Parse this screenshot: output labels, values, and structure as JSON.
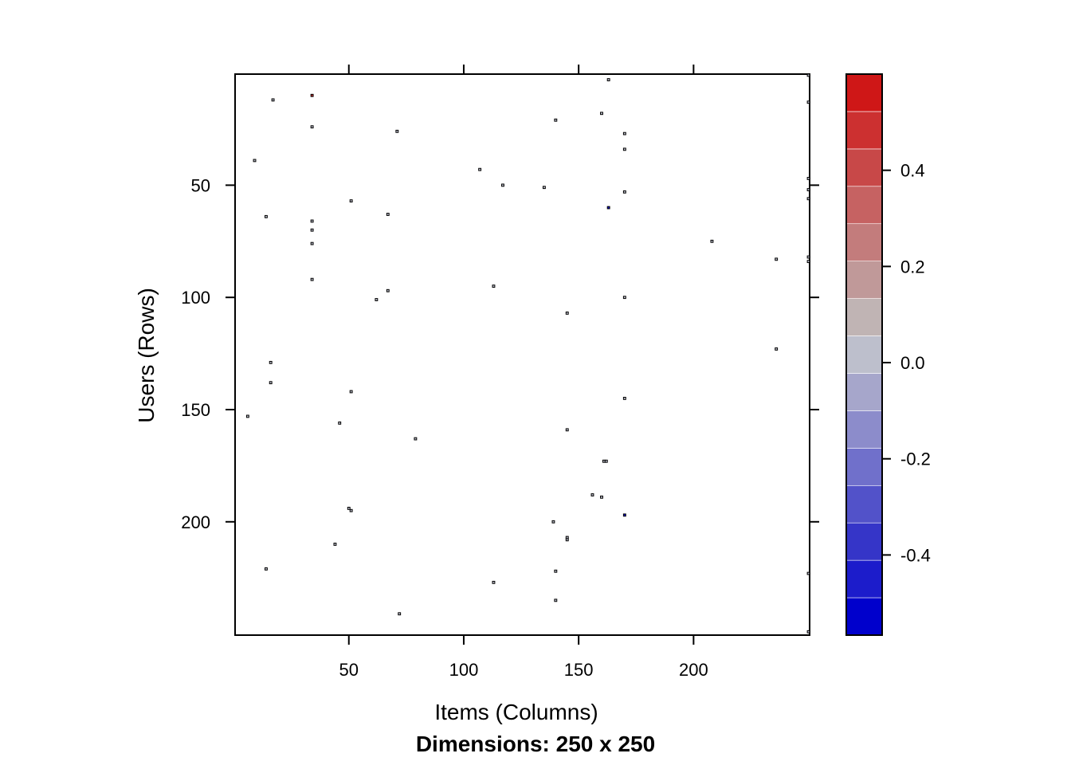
{
  "chart_data": {
    "type": "heatmap",
    "xlabel": "Items (Columns)",
    "ylabel": "Users (Rows)",
    "subtitle": "Dimensions: 250 x 250",
    "xlim": [
      0.5,
      250.5
    ],
    "ylim": [
      250.5,
      0.5
    ],
    "y_reversed": true,
    "x_ticks": [
      50,
      100,
      150,
      200
    ],
    "x_tick_labels": [
      "50",
      "100",
      "150",
      "200"
    ],
    "y_ticks": [
      50,
      100,
      150,
      200
    ],
    "y_tick_labels": [
      "50",
      "100",
      "150",
      "200"
    ],
    "colorbar": {
      "breaks": [
        -0.5667,
        -0.4889,
        -0.4111,
        -0.3333,
        -0.2556,
        -0.1778,
        -0.1,
        -0.0222,
        0.0556,
        0.1333,
        0.2111,
        0.2889,
        0.3667,
        0.4444,
        0.5222,
        0.6
      ],
      "colors": [
        "#0000CC",
        "#1C1CCB",
        "#3535C8",
        "#5252C9",
        "#7070CB",
        "#8C8CCB",
        "#A6A6CB",
        "#BDBFCC",
        "#C0B4B4",
        "#C09999",
        "#C37C7C",
        "#C66262",
        "#C84848",
        "#CC3030",
        "#CF1717",
        "#CC0000"
      ],
      "ticks": [
        -0.4,
        -0.2,
        0.0,
        0.2,
        0.4
      ],
      "tick_labels": [
        "-0.4",
        "-0.2",
        "0.0",
        "0.2",
        "0.4"
      ]
    },
    "cells": [
      {
        "col": 163,
        "row": 3,
        "value": 0.0
      },
      {
        "col": 250,
        "row": 1,
        "value": 0.0
      },
      {
        "col": 250,
        "row": 13,
        "value": 0.0
      },
      {
        "col": 34,
        "row": 10,
        "value": 0.5
      },
      {
        "col": 17,
        "row": 12,
        "value": 0.0
      },
      {
        "col": 160,
        "row": 18,
        "value": 0.0
      },
      {
        "col": 140,
        "row": 21,
        "value": 0.0
      },
      {
        "col": 34,
        "row": 24,
        "value": 0.0
      },
      {
        "col": 71,
        "row": 26,
        "value": 0.0
      },
      {
        "col": 170,
        "row": 27,
        "value": 0.0
      },
      {
        "col": 170,
        "row": 34,
        "value": 0.0
      },
      {
        "col": 9,
        "row": 39,
        "value": 0.0
      },
      {
        "col": 107,
        "row": 43,
        "value": 0.0
      },
      {
        "col": 250,
        "row": 47,
        "value": 0.0
      },
      {
        "col": 117,
        "row": 50,
        "value": 0.0
      },
      {
        "col": 135,
        "row": 51,
        "value": 0.0
      },
      {
        "col": 250,
        "row": 52,
        "value": 0.0
      },
      {
        "col": 170,
        "row": 53,
        "value": 0.0
      },
      {
        "col": 250,
        "row": 56,
        "value": 0.0
      },
      {
        "col": 51,
        "row": 57,
        "value": 0.0
      },
      {
        "col": 163,
        "row": 60,
        "value": -0.5
      },
      {
        "col": 67,
        "row": 63,
        "value": 0.0
      },
      {
        "col": 14,
        "row": 64,
        "value": 0.0
      },
      {
        "col": 34,
        "row": 66,
        "value": 0.0
      },
      {
        "col": 34,
        "row": 70,
        "value": 0.0
      },
      {
        "col": 208,
        "row": 75,
        "value": 0.0
      },
      {
        "col": 34,
        "row": 76,
        "value": 0.0
      },
      {
        "col": 250,
        "row": 82,
        "value": 0.0
      },
      {
        "col": 236,
        "row": 83,
        "value": 0.0
      },
      {
        "col": 250,
        "row": 84,
        "value": 0.0
      },
      {
        "col": 34,
        "row": 92,
        "value": 0.0
      },
      {
        "col": 113,
        "row": 95,
        "value": 0.0
      },
      {
        "col": 67,
        "row": 97,
        "value": 0.0
      },
      {
        "col": 170,
        "row": 100,
        "value": 0.0
      },
      {
        "col": 62,
        "row": 101,
        "value": 0.0
      },
      {
        "col": 145,
        "row": 107,
        "value": 0.0
      },
      {
        "col": 236,
        "row": 123,
        "value": 0.0
      },
      {
        "col": 16,
        "row": 129,
        "value": 0.0
      },
      {
        "col": 16,
        "row": 138,
        "value": 0.0
      },
      {
        "col": 51,
        "row": 142,
        "value": 0.0
      },
      {
        "col": 170,
        "row": 145,
        "value": 0.0
      },
      {
        "col": 6,
        "row": 153,
        "value": 0.0
      },
      {
        "col": 46,
        "row": 156,
        "value": 0.0
      },
      {
        "col": 145,
        "row": 159,
        "value": 0.0
      },
      {
        "col": 79,
        "row": 163,
        "value": 0.0
      },
      {
        "col": 161,
        "row": 173,
        "value": 0.0
      },
      {
        "col": 162,
        "row": 173,
        "value": 0.0
      },
      {
        "col": 156,
        "row": 188,
        "value": 0.0
      },
      {
        "col": 160,
        "row": 189,
        "value": 0.0
      },
      {
        "col": 50,
        "row": 194,
        "value": 0.0
      },
      {
        "col": 51,
        "row": 195,
        "value": 0.0
      },
      {
        "col": 170,
        "row": 197,
        "value": -0.5
      },
      {
        "col": 139,
        "row": 200,
        "value": 0.0
      },
      {
        "col": 145,
        "row": 207,
        "value": 0.0
      },
      {
        "col": 145,
        "row": 208,
        "value": 0.0
      },
      {
        "col": 44,
        "row": 210,
        "value": 0.0
      },
      {
        "col": 14,
        "row": 221,
        "value": 0.0
      },
      {
        "col": 140,
        "row": 222,
        "value": 0.0
      },
      {
        "col": 250,
        "row": 223,
        "value": 0.0
      },
      {
        "col": 113,
        "row": 227,
        "value": 0.0
      },
      {
        "col": 140,
        "row": 235,
        "value": 0.0
      },
      {
        "col": 72,
        "row": 241,
        "value": 0.0
      },
      {
        "col": 250,
        "row": 249,
        "value": 0.0
      }
    ]
  }
}
